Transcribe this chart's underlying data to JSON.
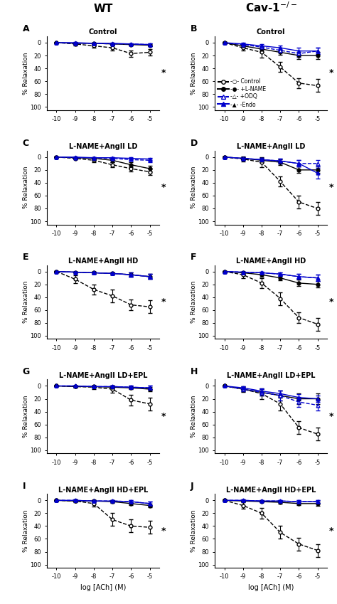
{
  "x": [
    -10,
    -9,
    -8,
    -7,
    -6,
    -5
  ],
  "col_titles": [
    "WT",
    "Cav-1⁻/⁻"
  ],
  "panel_labels": [
    "A",
    "B",
    "C",
    "D",
    "E",
    "F",
    "G",
    "H",
    "I",
    "J"
  ],
  "panel_titles": [
    "Control",
    "Control",
    "L-NAME+AngII LD",
    "L-NAME+AngII LD",
    "L-NAME+AngII HD",
    "L-NAME+AngII HD",
    "L-NAME+AngII LD+EPL",
    "L-NAME+AngII LD+EPL",
    "L-NAME+AngII HD+EPL",
    "L-NAME+AngII HD+EPL"
  ],
  "series": {
    "control": {
      "color": "#000000",
      "linestyle": "--",
      "marker": "o",
      "filled": false,
      "label": "Control"
    },
    "lname": {
      "color": "#000000",
      "linestyle": "-",
      "marker": "o",
      "filled": true,
      "label": "+L-NAME"
    },
    "odq": {
      "color": "#0000cc",
      "linestyle": "--",
      "marker": "^",
      "filled": false,
      "label": "+ODQ"
    },
    "endo": {
      "color": "#0000cc",
      "linestyle": "-",
      "marker": "^",
      "filled": true,
      "label": "-Endo"
    }
  },
  "panels": [
    {
      "id": "A",
      "control": {
        "y": [
          0,
          2,
          5,
          8,
          17,
          15
        ],
        "yerr": [
          0.5,
          2,
          3,
          4,
          5,
          5
        ]
      },
      "lname": {
        "y": [
          0,
          1,
          1,
          2,
          3,
          4
        ],
        "yerr": [
          0.5,
          1,
          1,
          1,
          1,
          2
        ]
      },
      "odq": {
        "y": [
          0,
          1,
          1,
          2,
          2,
          3
        ],
        "yerr": [
          0.5,
          1,
          1,
          1,
          1,
          2
        ]
      },
      "endo": {
        "y": [
          0,
          0,
          1,
          1,
          2,
          3
        ],
        "yerr": [
          0.5,
          1,
          1,
          1,
          1,
          2
        ]
      }
    },
    {
      "id": "B",
      "control": {
        "y": [
          0,
          8,
          15,
          38,
          63,
          67
        ],
        "yerr": [
          1,
          4,
          8,
          8,
          8,
          10
        ]
      },
      "lname": {
        "y": [
          0,
          5,
          10,
          15,
          20,
          20
        ],
        "yerr": [
          1,
          3,
          4,
          4,
          5,
          5
        ]
      },
      "odq": {
        "y": [
          0,
          3,
          7,
          12,
          17,
          13
        ],
        "yerr": [
          1,
          2,
          3,
          4,
          5,
          5
        ]
      },
      "endo": {
        "y": [
          0,
          2,
          5,
          8,
          13,
          13
        ],
        "yerr": [
          1,
          2,
          3,
          4,
          5,
          5
        ]
      }
    },
    {
      "id": "C",
      "control": {
        "y": [
          0,
          2,
          5,
          12,
          18,
          23
        ],
        "yerr": [
          0.5,
          2,
          3,
          4,
          4,
          5
        ]
      },
      "lname": {
        "y": [
          0,
          1,
          2,
          5,
          12,
          18
        ],
        "yerr": [
          0.5,
          1,
          2,
          3,
          4,
          4
        ]
      },
      "odq": {
        "y": [
          0,
          1,
          1,
          2,
          4,
          5
        ],
        "yerr": [
          0.5,
          1,
          1,
          2,
          2,
          3
        ]
      },
      "endo": {
        "y": [
          0,
          0,
          1,
          1,
          2,
          3
        ],
        "yerr": [
          0.5,
          1,
          1,
          1,
          2,
          2
        ]
      }
    },
    {
      "id": "D",
      "control": {
        "y": [
          0,
          3,
          8,
          38,
          70,
          80
        ],
        "yerr": [
          1,
          4,
          8,
          8,
          10,
          10
        ]
      },
      "lname": {
        "y": [
          0,
          2,
          5,
          8,
          20,
          20
        ],
        "yerr": [
          1,
          2,
          3,
          4,
          5,
          5
        ]
      },
      "odq": {
        "y": [
          0,
          2,
          4,
          6,
          10,
          10
        ],
        "yerr": [
          1,
          2,
          3,
          4,
          5,
          5
        ]
      },
      "endo": {
        "y": [
          0,
          2,
          4,
          6,
          10,
          25
        ],
        "yerr": [
          1,
          2,
          3,
          4,
          5,
          8
        ]
      }
    },
    {
      "id": "E",
      "control": {
        "y": [
          0,
          12,
          28,
          38,
          52,
          55
        ],
        "yerr": [
          1,
          6,
          8,
          10,
          8,
          10
        ]
      },
      "lname": {
        "y": [
          0,
          1,
          2,
          3,
          5,
          8
        ],
        "yerr": [
          0.5,
          1,
          2,
          2,
          3,
          4
        ]
      },
      "odq": {
        "y": [
          0,
          1,
          2,
          3,
          5,
          8
        ],
        "yerr": [
          0.5,
          1,
          2,
          2,
          3,
          4
        ]
      },
      "endo": {
        "y": [
          0,
          1,
          2,
          3,
          5,
          8
        ],
        "yerr": [
          0.5,
          1,
          2,
          2,
          3,
          4
        ]
      }
    },
    {
      "id": "F",
      "control": {
        "y": [
          0,
          5,
          18,
          42,
          72,
          82
        ],
        "yerr": [
          1,
          5,
          8,
          10,
          8,
          10
        ]
      },
      "lname": {
        "y": [
          0,
          2,
          5,
          10,
          18,
          20
        ],
        "yerr": [
          1,
          2,
          3,
          4,
          5,
          5
        ]
      },
      "odq": {
        "y": [
          0,
          1,
          2,
          4,
          8,
          10
        ],
        "yerr": [
          1,
          1,
          2,
          3,
          4,
          5
        ]
      },
      "endo": {
        "y": [
          0,
          1,
          2,
          4,
          8,
          10
        ],
        "yerr": [
          1,
          1,
          2,
          3,
          4,
          5
        ]
      }
    },
    {
      "id": "G",
      "control": {
        "y": [
          0,
          1,
          2,
          5,
          22,
          28
        ],
        "yerr": [
          0.5,
          2,
          3,
          5,
          8,
          10
        ]
      },
      "lname": {
        "y": [
          0,
          1,
          1,
          2,
          3,
          5
        ],
        "yerr": [
          0.5,
          1,
          1,
          2,
          2,
          3
        ]
      },
      "odq": {
        "y": [
          0,
          0,
          1,
          1,
          2,
          3
        ],
        "yerr": [
          0.5,
          1,
          1,
          1,
          2,
          3
        ]
      },
      "endo": {
        "y": [
          0,
          0,
          1,
          1,
          2,
          3
        ],
        "yerr": [
          0.5,
          1,
          1,
          1,
          2,
          3
        ]
      }
    },
    {
      "id": "H",
      "control": {
        "y": [
          0,
          5,
          12,
          28,
          65,
          75
        ],
        "yerr": [
          1,
          4,
          8,
          10,
          10,
          10
        ]
      },
      "lname": {
        "y": [
          0,
          5,
          10,
          15,
          20,
          20
        ],
        "yerr": [
          1,
          3,
          5,
          8,
          8,
          8
        ]
      },
      "odq": {
        "y": [
          0,
          5,
          10,
          15,
          25,
          30
        ],
        "yerr": [
          1,
          3,
          5,
          8,
          8,
          8
        ]
      },
      "endo": {
        "y": [
          0,
          3,
          8,
          12,
          18,
          20
        ],
        "yerr": [
          1,
          2,
          4,
          5,
          5,
          5
        ]
      }
    },
    {
      "id": "I",
      "control": {
        "y": [
          0,
          1,
          5,
          30,
          40,
          42
        ],
        "yerr": [
          0.5,
          2,
          5,
          10,
          10,
          10
        ]
      },
      "lname": {
        "y": [
          0,
          1,
          1,
          2,
          5,
          8
        ],
        "yerr": [
          0.5,
          1,
          1,
          2,
          2,
          3
        ]
      },
      "odq": {
        "y": [
          0,
          0,
          1,
          1,
          2,
          5
        ],
        "yerr": [
          0.5,
          1,
          1,
          1,
          2,
          3
        ]
      },
      "endo": {
        "y": [
          0,
          0,
          1,
          1,
          2,
          5
        ],
        "yerr": [
          0.5,
          1,
          1,
          1,
          2,
          3
        ]
      }
    },
    {
      "id": "J",
      "control": {
        "y": [
          0,
          8,
          20,
          50,
          68,
          78
        ],
        "yerr": [
          1,
          5,
          8,
          10,
          10,
          10
        ]
      },
      "lname": {
        "y": [
          0,
          1,
          2,
          3,
          5,
          5
        ],
        "yerr": [
          0.5,
          1,
          1,
          2,
          2,
          3
        ]
      },
      "odq": {
        "y": [
          0,
          0,
          1,
          1,
          2,
          2
        ],
        "yerr": [
          0.5,
          1,
          1,
          1,
          2,
          2
        ]
      },
      "endo": {
        "y": [
          0,
          0,
          1,
          1,
          2,
          2
        ],
        "yerr": [
          0.5,
          1,
          1,
          1,
          2,
          2
        ]
      }
    }
  ],
  "ylim_bottom": 105,
  "ylim_top": -10,
  "yticks": [
    0,
    20,
    40,
    60,
    80,
    100
  ],
  "ylabel": "% Relaxation",
  "xlabel": "log [ACh] (M)",
  "xticks": [
    -10,
    -9,
    -8,
    -7,
    -6,
    -5
  ],
  "xticklabels": [
    "-10",
    "-9",
    "-8",
    "-7",
    "-6",
    "-5"
  ]
}
